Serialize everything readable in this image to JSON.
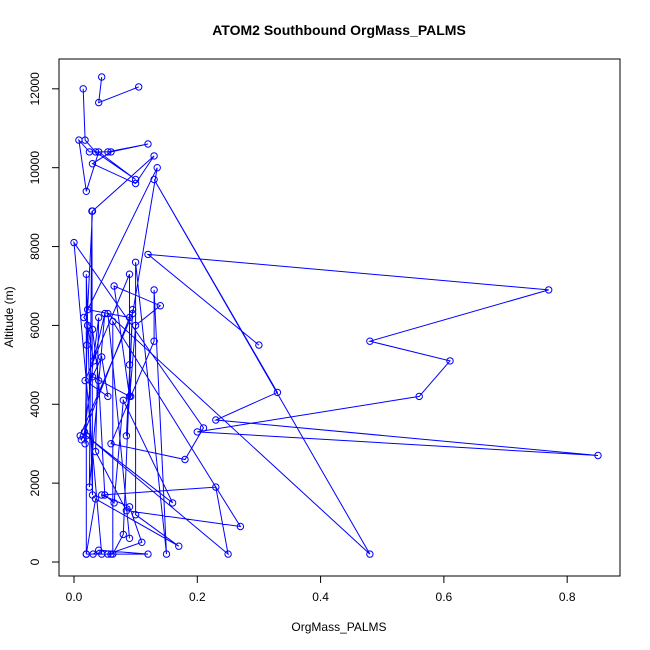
{
  "chart_data": {
    "type": "line",
    "title": "ATOM2 Southbound OrgMass_PALMS",
    "xlabel": "OrgMass_PALMS",
    "ylabel": "Altitude (m)",
    "xlim": [
      0,
      0.85
    ],
    "ylim": [
      0,
      12300
    ],
    "xticks": [
      0.0,
      0.2,
      0.4,
      0.6,
      0.8
    ],
    "xtick_labels": [
      "0.0",
      "0.2",
      "0.4",
      "0.6",
      "0.8"
    ],
    "yticks": [
      0,
      2000,
      4000,
      6000,
      8000,
      10000,
      12000
    ],
    "ytick_labels": [
      "0",
      "2000",
      "4000",
      "6000",
      "8000",
      "10000",
      "12000"
    ],
    "grid": false,
    "marker": "open-circle",
    "series_color": "#0000ff",
    "series": [
      {
        "x": [
          0.015,
          0.018,
          0.035,
          0.1,
          0.04,
          0.02,
          0.008,
          0.025,
          0.055,
          0.12,
          0.06,
          0.03,
          0.1,
          0.13,
          0.03,
          0.022,
          0.09,
          0.012,
          0.01,
          0.095,
          0.135,
          0.016,
          0.03,
          0.04,
          0.05,
          0.065,
          0.08,
          0.16,
          0.02,
          0.25,
          0.23,
          0.045,
          0.09,
          0.11,
          0.055,
          0.12,
          0.04,
          0.031,
          0.02,
          0.06,
          0.045,
          0.0,
          0.21,
          0.18,
          0.06,
          0.13,
          0.13,
          0.15,
          0.1,
          0.1,
          0.17,
          0.035,
          0.02,
          0.02,
          0.03,
          0.029,
          0.025,
          0.05,
          0.032,
          0.022,
          0.021,
          0.018,
          0.017,
          0.04,
          0.035,
          0.085,
          0.27,
          0.063,
          0.063,
          0.08,
          0.095,
          0.085,
          0.1,
          0.14,
          0.065,
          0.09,
          0.03,
          0.045,
          0.055,
          0.018,
          0.09,
          0.09,
          0.092
        ],
        "y": [
          12000,
          10700,
          10400,
          9700,
          10400,
          9400,
          10700,
          10400,
          10400,
          10600,
          10400,
          10100,
          9600,
          10300,
          8900,
          6400,
          6200,
          3100,
          3200,
          6300,
          10000,
          6200,
          5900,
          4600,
          1700,
          1500,
          4100,
          1500,
          3200,
          200,
          1900,
          1700,
          1400,
          500,
          200,
          200,
          300,
          200,
          200,
          200,
          200,
          8100,
          3400,
          2600,
          3000,
          5600,
          6900,
          200,
          7600,
          1200,
          400,
          1600,
          200,
          7300,
          1700,
          8900,
          1900,
          6300,
          5100,
          6000,
          5500,
          3000,
          3300,
          6200,
          2800,
          1300,
          900,
          6100,
          200,
          700,
          6400,
          3200,
          6000,
          6500,
          7000,
          4200,
          4700,
          5200,
          4200,
          4600,
          7300,
          5000,
          4200
        ]
      },
      {
        "x": [
          0.045,
          0.04,
          0.105
        ],
        "y": [
          12300,
          11650,
          12050
        ]
      },
      {
        "x": [
          0.3,
          0.12,
          0.77,
          0.48,
          0.61,
          0.56,
          0.2,
          0.85,
          0.23,
          0.33,
          0.13,
          0.48,
          0.055,
          0.09
        ],
        "y": [
          5500,
          7800,
          6900,
          5600,
          5100,
          4200,
          3300,
          2700,
          3600,
          4300,
          9700,
          200,
          6300,
          600
        ]
      }
    ]
  }
}
